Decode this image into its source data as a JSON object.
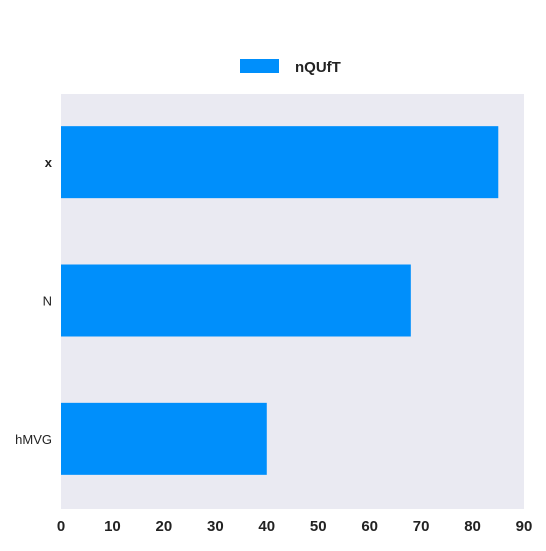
{
  "chart_data": {
    "type": "bar",
    "orientation": "horizontal",
    "categories": [
      "x",
      "N",
      "hMVG"
    ],
    "category_label_weight": [
      "bold",
      "normal",
      "normal"
    ],
    "series": [
      {
        "name": "nQUfT",
        "values": [
          85,
          68,
          40
        ],
        "color": "#008ffb"
      }
    ],
    "xlim": [
      0,
      90
    ],
    "x_ticks": [
      0,
      10,
      20,
      30,
      40,
      50,
      60,
      70,
      80,
      90
    ],
    "grid": false,
    "legend_position": "top-center",
    "plot_background": "#eaeaf2"
  }
}
